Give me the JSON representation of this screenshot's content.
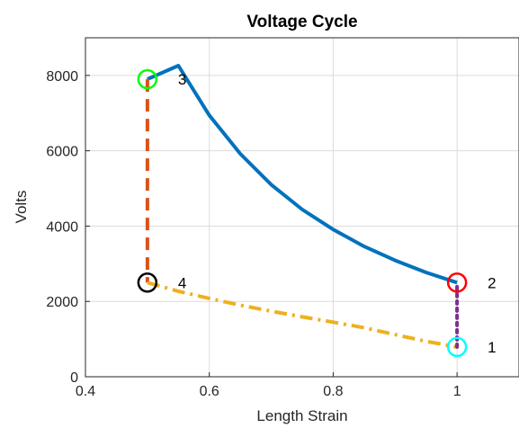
{
  "chart_data": {
    "type": "line",
    "title": "Voltage Cycle",
    "xlabel": "Length Strain",
    "ylabel": "Volts",
    "xlim": [
      0.4,
      1.1
    ],
    "ylim": [
      0,
      9000
    ],
    "xticks": [
      0.4,
      0.6,
      0.8,
      1
    ],
    "xtick_labels": [
      "0.4",
      "0.6",
      "0.8",
      "1"
    ],
    "yticks": [
      0,
      2000,
      4000,
      6000,
      8000
    ],
    "ytick_labels": [
      "0",
      "2000",
      "4000",
      "6000",
      "8000"
    ],
    "grid": true,
    "series": [
      {
        "color": "#0072BD",
        "style": "solid",
        "x": [
          1,
          0.95,
          0.9,
          0.85,
          0.8,
          0.75,
          0.7,
          0.65,
          0.6,
          0.55,
          0.5
        ],
        "y": [
          2500,
          2770,
          3090,
          3460,
          3910,
          4440,
          5100,
          5920,
          6940,
          8260,
          7900
        ]
      },
      {
        "color": "#D95319",
        "style": "dashed",
        "x": [
          0.5,
          0.5
        ],
        "y": [
          7900,
          2500
        ]
      },
      {
        "color": "#EDB120",
        "style": "dashdot",
        "x": [
          0.5,
          0.55,
          0.6,
          0.65,
          0.7,
          0.75,
          0.8,
          0.85,
          0.9,
          0.95,
          1
        ],
        "y": [
          2500,
          2270,
          2080,
          1900,
          1740,
          1590,
          1450,
          1300,
          1120,
          940,
          790
        ]
      },
      {
        "color": "#7E2F8E",
        "style": "dotted",
        "x": [
          1,
          1
        ],
        "y": [
          790,
          2500
        ]
      }
    ],
    "points": [
      {
        "label": "1",
        "x": 1,
        "y": 790,
        "color": "#00FFFF"
      },
      {
        "label": "2",
        "x": 1,
        "y": 2500,
        "color": "#FF0000"
      },
      {
        "label": "3",
        "x": 0.5,
        "y": 7900,
        "color": "#00FF00"
      },
      {
        "label": "4",
        "x": 0.5,
        "y": 2500,
        "color": "#000000"
      }
    ]
  }
}
